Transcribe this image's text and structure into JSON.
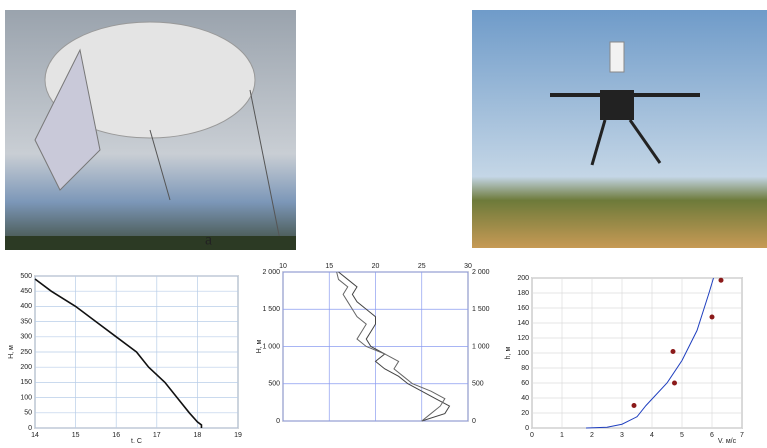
{
  "panel_label": "a",
  "chart_data": [
    {
      "type": "line",
      "ylabel": "H, м",
      "xlabel": "t, С",
      "xlim": [
        14,
        19
      ],
      "ylim": [
        0,
        500
      ],
      "xticks": [
        14,
        15,
        16,
        17,
        18,
        19
      ],
      "yticks": [
        0,
        50,
        100,
        150,
        200,
        250,
        300,
        350,
        400,
        450,
        500
      ],
      "grid": true,
      "grid_color": "#b8cde8",
      "series": [
        {
          "color": "#111111",
          "x": [
            14.0,
            14.4,
            15.0,
            15.5,
            16.0,
            16.5,
            16.8,
            17.2,
            17.5,
            17.8,
            18.0,
            18.1,
            18.1
          ],
          "values": [
            490,
            450,
            400,
            350,
            300,
            250,
            200,
            150,
            100,
            50,
            20,
            10,
            0
          ]
        }
      ]
    },
    {
      "type": "line",
      "ylabel": "H, м",
      "xlim": [
        10,
        30
      ],
      "ylim": [
        0,
        2000
      ],
      "xaxis_position": "top",
      "mirror_y": true,
      "xticks": [
        10,
        15,
        20,
        25,
        30
      ],
      "yticks": [
        0,
        500,
        {
          "value": 1000,
          "label": "1 000"
        },
        {
          "value": 1500,
          "label": "1 500"
        },
        {
          "value": 2000,
          "label": "2 000"
        }
      ],
      "grid": true,
      "grid_color": "#8b9cf0",
      "series": [
        {
          "color": "#444444",
          "x": [
            25,
            27.5,
            28,
            26.5,
            25,
            23.5,
            22.5,
            21,
            20,
            21,
            19.5,
            19,
            19.5,
            20,
            20,
            19,
            18,
            17.5,
            18,
            17,
            16
          ],
          "values": [
            0,
            100,
            200,
            300,
            400,
            500,
            600,
            700,
            800,
            900,
            1000,
            1100,
            1200,
            1300,
            1400,
            1500,
            1600,
            1700,
            1800,
            1900,
            2000
          ]
        },
        {
          "color": "#666666",
          "x": [
            25,
            26,
            27,
            27.5,
            26,
            24,
            23,
            22,
            22.5,
            21,
            19,
            18,
            18.5,
            19,
            18,
            17.5,
            17,
            16.5,
            17,
            16,
            15.8
          ],
          "values": [
            0,
            100,
            200,
            300,
            400,
            500,
            600,
            700,
            800,
            900,
            1000,
            1100,
            1200,
            1300,
            1400,
            1500,
            1600,
            1700,
            1800,
            1900,
            2000
          ]
        }
      ]
    },
    {
      "type": "line",
      "ylabel": "h, м",
      "xlabel": "V, м/с",
      "xlim": [
        0,
        7
      ],
      "ylim": [
        0,
        200
      ],
      "xticks": [
        0,
        1,
        2,
        3,
        4,
        5,
        6,
        7
      ],
      "yticks": [
        0,
        20,
        40,
        60,
        80,
        100,
        120,
        140,
        160,
        180,
        200
      ],
      "grid": true,
      "grid_color": "#dddddd",
      "series": [
        {
          "type": "line",
          "color": "#1f3fbf",
          "x": [
            1.8,
            2.5,
            3.0,
            3.5,
            3.8,
            4.5,
            5.0,
            5.5,
            5.9,
            6.05
          ],
          "values": [
            0,
            1,
            5,
            15,
            30,
            60,
            90,
            130,
            180,
            200
          ]
        },
        {
          "type": "scatter",
          "color": "#8b1a1a",
          "x": [
            3.4,
            4.7,
            4.75,
            6.0,
            6.3
          ],
          "values": [
            30,
            102,
            60,
            148,
            197
          ]
        }
      ]
    }
  ]
}
